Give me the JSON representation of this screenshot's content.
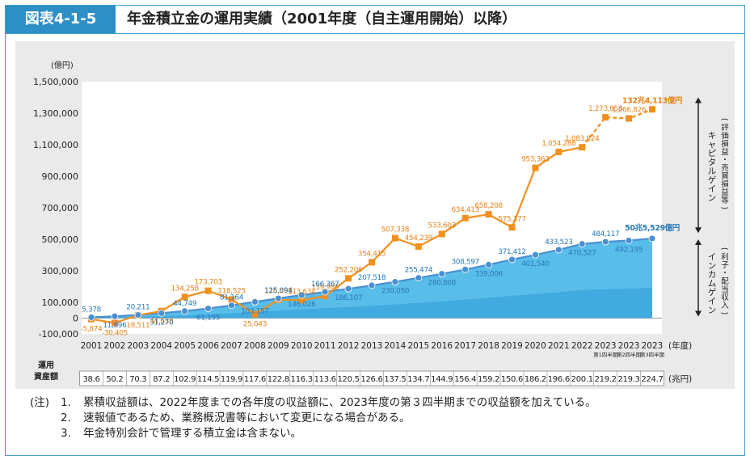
{
  "figure": {
    "label": "図表4-1-5",
    "title": "年金積立金の運用実績（2001年度（自主運用開始）以降）"
  },
  "notes": {
    "head": "(注)",
    "items": [
      {
        "num": "1.",
        "text": "累積収益額は、2022年度までの各年度の収益額に、2023年度の第３四半期までの収益額を加えている。"
      },
      {
        "num": "2.",
        "text": "速報値であるため、業務概況書等において変更になる場合がある。"
      },
      {
        "num": "3.",
        "text": "年金特別会計で管理する積立金は含まない。"
      }
    ]
  },
  "colors": {
    "orange": "#f0901e",
    "blue": "#4a90d0",
    "area_light": "#59bdea",
    "area_dark": "#2e9ad6",
    "label_orange": "#e8841a",
    "label_blue": "#2a7ab8"
  },
  "chart_data": {
    "type": "line",
    "ylabel": "(億円)",
    "xlabel": "(年度)",
    "ylim": [
      -100000,
      1500000
    ],
    "yticks": [
      "1,500,000",
      "1,300,000",
      "1,100,000",
      "900,000",
      "700,000",
      "500,000",
      "300,000",
      "100,000",
      "0",
      "-100,000"
    ],
    "ytick_values": [
      1500000,
      1300000,
      1100000,
      900000,
      700000,
      500000,
      300000,
      100000,
      0,
      -100000
    ],
    "categories": [
      "2001",
      "2002",
      "2003",
      "2004",
      "2005",
      "2006",
      "2007",
      "2008",
      "2009",
      "2010",
      "2011",
      "2012",
      "2013",
      "2014",
      "2015",
      "2016",
      "2017",
      "2018",
      "2019",
      "2020",
      "2021",
      "2022",
      "2023",
      "2023",
      "2023"
    ],
    "quarter_labels": [
      "",
      "",
      "",
      "",
      "",
      "",
      "",
      "",
      "",
      "",
      "",
      "",
      "",
      "",
      "",
      "",
      "",
      "",
      "",
      "",
      "",
      "",
      "第1四半期",
      "第2四半期",
      "第3四半期"
    ],
    "series": [
      {
        "name": "キャピタルゲイン（評価損益・売買損益等）",
        "values": [
          -5874,
          -30405,
          18511,
          44638,
          134258,
          173703,
          118525,
          25043,
          116893,
          113634,
          139986,
          252209,
          354415,
          507338,
          454239,
          533603,
          634413,
          658208,
          575377,
          953363,
          1054288,
          1083824,
          1273658,
          1266826,
          1324113
        ],
        "labels": [
          "-5,874",
          "-30,405",
          "18,511",
          "44,638",
          "134,258",
          "173,703",
          "118,525",
          "25,043",
          "116,893",
          "113,634",
          "139,986",
          "252,209",
          "354,415",
          "507,338",
          "454,239",
          "533,603",
          "634,413",
          "658,208",
          "575,377",
          "953,363",
          "1,054,288",
          "1,083,824",
          "1,273,658",
          "1,266,826",
          "132兆4,113億円"
        ]
      },
      {
        "name": "インカムゲイン（利子・配当収入）",
        "values": [
          5378,
          11896,
          20211,
          31270,
          44749,
          61155,
          81164,
          103157,
          125094,
          146026,
          166367,
          186107,
          207518,
          230050,
          255474,
          280808,
          308597,
          339006,
          371412,
          401540,
          433523,
          470527,
          484117,
          492195,
          505529
        ],
        "labels": [
          "5,378",
          "11,896",
          "20,211",
          "31,270",
          "44,749",
          "61,155",
          "81,164",
          "103,157",
          "125,094",
          "146,026",
          "166,367",
          "186,107",
          "207,518",
          "230,050",
          "255,474",
          "280,808",
          "308,597",
          "339,006",
          "371,412",
          "401,540",
          "433,523",
          "470,527",
          "484,117",
          "492,195",
          "50兆5,529億円"
        ]
      }
    ],
    "asset_row": {
      "label": [
        "運用",
        "資産額"
      ],
      "unit": "(兆円)",
      "values": [
        "38.6",
        "50.2",
        "70.3",
        "87.2",
        "102.9",
        "114.5",
        "119.9",
        "117.6",
        "122.8",
        "116.3",
        "113.6",
        "120.5",
        "126.6",
        "137.5",
        "134.7",
        "144.9",
        "156.4",
        "159.2",
        "150.6",
        "186.2",
        "196.6",
        "200.1",
        "219.2",
        "219.3",
        "224.7"
      ]
    },
    "side_labels": {
      "capital": [
        "キャピタルゲイン",
        "(評価損益・売買損益等)"
      ],
      "income": [
        "インカムゲイン",
        "(利子・配当収入)"
      ]
    }
  }
}
